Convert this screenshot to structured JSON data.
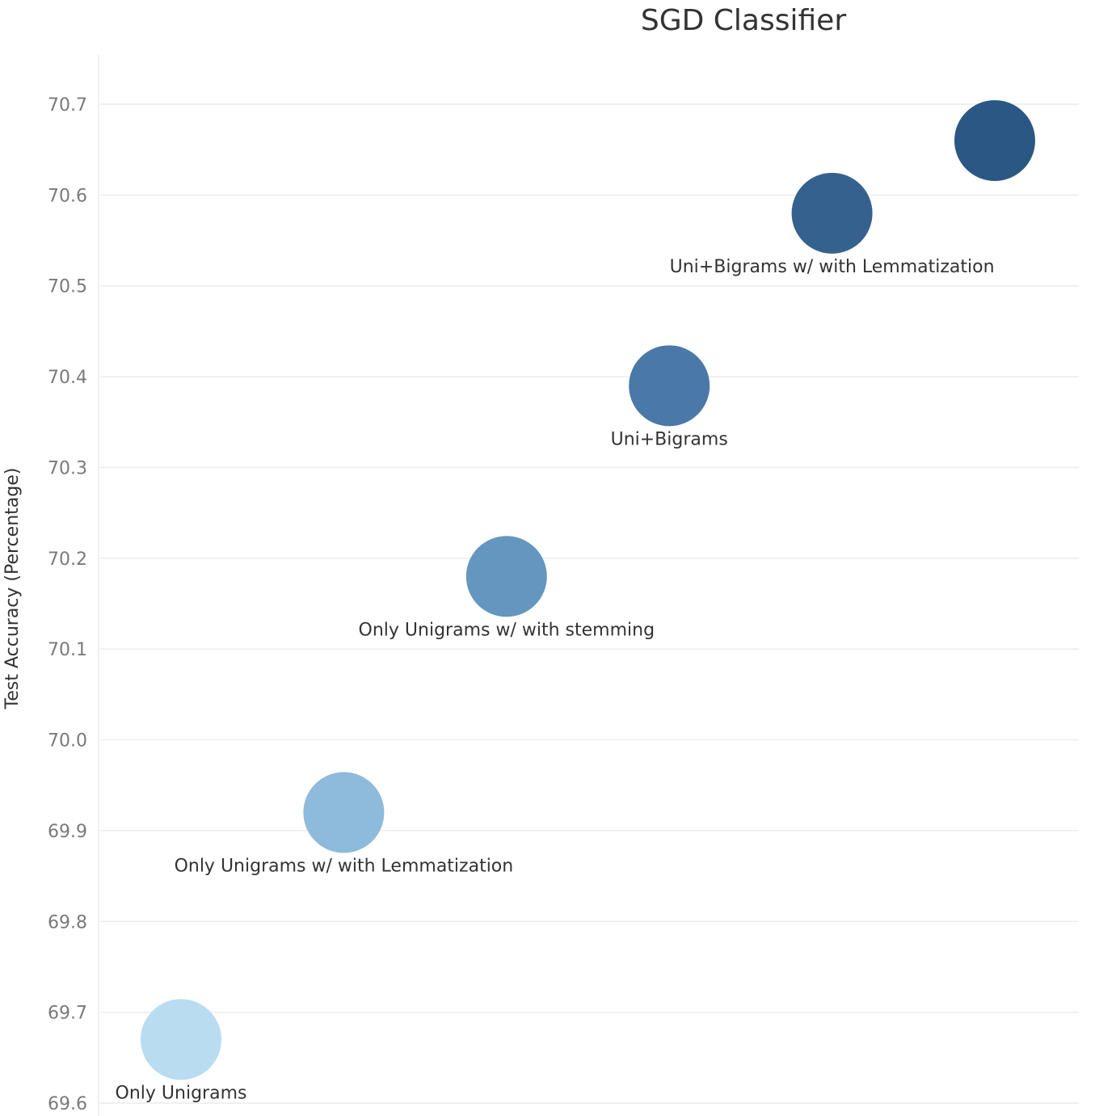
{
  "chart_data": {
    "type": "scatter",
    "title": "SGD Classifier",
    "xlabel": "",
    "ylabel": "Test Accuracy (Percentage)",
    "ylim": [
      69.6,
      70.75
    ],
    "yticks": [
      69.6,
      69.7,
      69.8,
      69.9,
      70.0,
      70.1,
      70.2,
      70.3,
      70.4,
      70.5,
      70.6,
      70.7
    ],
    "grid": true,
    "legend": "none",
    "points": [
      {
        "label": "Only Unigrams",
        "y": 69.67,
        "color": "#b9dcf0"
      },
      {
        "label": "Only Unigrams w/ with Lemmatization",
        "y": 69.92,
        "color": "#8ebadb"
      },
      {
        "label": "Only Unigrams w/ with stemming",
        "y": 70.18,
        "color": "#6496c0"
      },
      {
        "label": "Uni+Bigrams",
        "y": 70.39,
        "color": "#4a78a8"
      },
      {
        "label": "Uni+Bigrams w/ with Lemmatization",
        "y": 70.58,
        "color": "#35618e"
      },
      {
        "label": "",
        "y": 70.66,
        "color": "#2b5784"
      }
    ]
  }
}
